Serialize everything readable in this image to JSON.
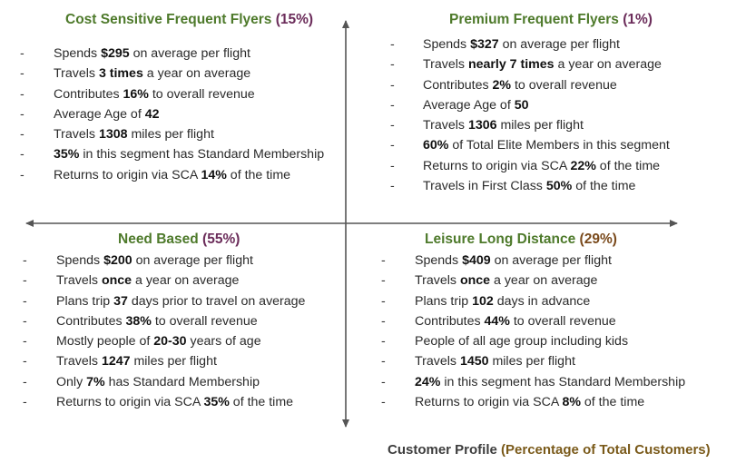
{
  "quadrants": {
    "top_left": {
      "title": "Cost Sensitive Frequent Flyers",
      "percent": "(15%)",
      "items": [
        {
          "text": "Spends $295 on average per flight",
          "bold": [
            "$295"
          ]
        },
        {
          "text": "Travels 3 times a year on average",
          "bold": [
            "3 times"
          ]
        },
        {
          "text": "Contributes 16% to overall revenue",
          "bold": [
            "16%"
          ]
        },
        {
          "text": "Average Age of 42",
          "bold": [
            "42"
          ]
        },
        {
          "text": "Travels 1308 miles per flight",
          "bold": [
            "1308"
          ]
        },
        {
          "text": "35% in this  segment  has Standard Membership",
          "bold": [
            "35%"
          ]
        },
        {
          "text": "Returns to origin via SCA 14% of the time",
          "bold": [
            "14%"
          ]
        }
      ]
    },
    "top_right": {
      "title": "Premium Frequent Flyers",
      "percent": "(1%)",
      "items": [
        {
          "text": "Spends $327 on average per flight",
          "bold": [
            "$327"
          ]
        },
        {
          "text": "Travels nearly 7 times a year on average",
          "bold": [
            "nearly 7 times"
          ]
        },
        {
          "text": "Contributes 2% to overall revenue",
          "bold": [
            "2%"
          ]
        },
        {
          "text": "Average Age of 50",
          "bold": [
            "50"
          ]
        },
        {
          "text": "Travels 1306 miles per flight",
          "bold": [
            "1306"
          ]
        },
        {
          "text": "60% of Total Elite Members in this segment",
          "bold": [
            "60%"
          ]
        },
        {
          "text": "Returns to origin via SCA 22% of the time",
          "bold": [
            "22%"
          ]
        },
        {
          "text": "Travels in First Class 50% of the time",
          "bold": [
            "50%"
          ]
        }
      ]
    },
    "bottom_left": {
      "title": "Need Based",
      "percent": "(55%)",
      "items": [
        {
          "text": "Spends $200 on average per flight",
          "bold": [
            "$200"
          ]
        },
        {
          "text": "Travels once a year on average",
          "bold": [
            "once"
          ]
        },
        {
          "text": "Plans trip 37 days prior to travel on average",
          "bold": [
            "37"
          ]
        },
        {
          "text": "Contributes 38% to overall revenue",
          "bold": [
            "38%"
          ]
        },
        {
          "text": "Mostly people of 20-30 years of age",
          "bold": [
            "20-30"
          ]
        },
        {
          "text": "Travels 1247 miles per flight",
          "bold": [
            "1247"
          ]
        },
        {
          "text": "Only 7% has Standard Membership",
          "bold": [
            "7%"
          ]
        },
        {
          "text": "Returns to origin via SCA 35% of the time",
          "bold": [
            "35%"
          ]
        }
      ]
    },
    "bottom_right": {
      "title": "Leisure Long Distance",
      "percent": "(29%)",
      "items": [
        {
          "text": "Spends $409 on average per flight",
          "bold": [
            "$409"
          ]
        },
        {
          "text": "Travels once a year on average",
          "bold": [
            "once"
          ]
        },
        {
          "text": "Plans trip 102  days in advance",
          "bold": [
            "102"
          ]
        },
        {
          "text": "Contributes 44% to overall revenue",
          "bold": [
            "44%"
          ]
        },
        {
          "text": "People of all age group including kids",
          "bold": []
        },
        {
          "text": "Travels 1450 miles per flight",
          "bold": [
            "1450"
          ]
        },
        {
          "text": "24% in this segment  has Standard Membership",
          "bold": [
            "24%"
          ]
        },
        {
          "text": "Returns to origin via SCA 8% of the time",
          "bold": [
            "8%"
          ]
        }
      ]
    }
  },
  "bullet_char": "-",
  "footer": {
    "label": "Customer Profile",
    "note": "(Percentage of Total Customers)"
  },
  "colors": {
    "title_green": "#4e7a2b",
    "percent_purple": "#6b2c5a",
    "percent_brown": "#7a4a1c",
    "axis": "#555555"
  }
}
